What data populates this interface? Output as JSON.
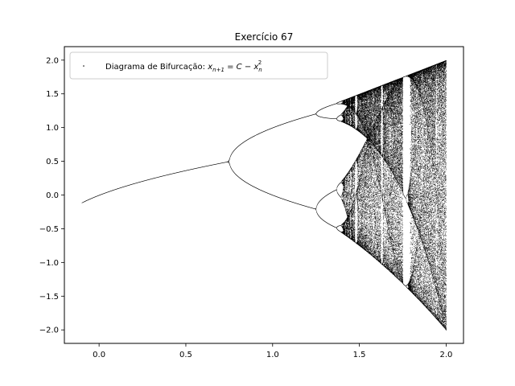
{
  "chart_data": {
    "type": "scatter",
    "title": "Exercício 67",
    "xlabel": "",
    "ylabel": "",
    "xlim": [
      -0.2,
      2.1
    ],
    "ylim": [
      -2.2,
      2.2
    ],
    "x_ticks": [
      0.0,
      0.5,
      1.0,
      1.5,
      2.0
    ],
    "x_tick_labels": [
      "0.0",
      "0.5",
      "1.0",
      "1.5",
      "2.0"
    ],
    "y_ticks": [
      -2.0,
      -1.5,
      -1.0,
      -0.5,
      0.0,
      0.5,
      1.0,
      1.5,
      2.0
    ],
    "y_tick_labels": [
      "−2.0",
      "−1.5",
      "−1.0",
      "−0.5",
      "0.0",
      "0.5",
      "1.0",
      "1.5",
      "2.0"
    ],
    "grid": false,
    "legend_position": "top-left",
    "series": [
      {
        "name": "Diagrama de Bifurcação: x_{n+1} = C − x_n^2",
        "map": "x_{n+1} = C - x_n^2",
        "c_range": [
          -0.1,
          2.0
        ],
        "color": "#000000"
      }
    ]
  },
  "legend": {
    "label_text": "Diagrama de Bifurcação: ",
    "label_math": "x",
    "label_math_sub": "n+1",
    "label_eq": " = C − x",
    "label_sub2": "n",
    "label_sup2": "2"
  }
}
